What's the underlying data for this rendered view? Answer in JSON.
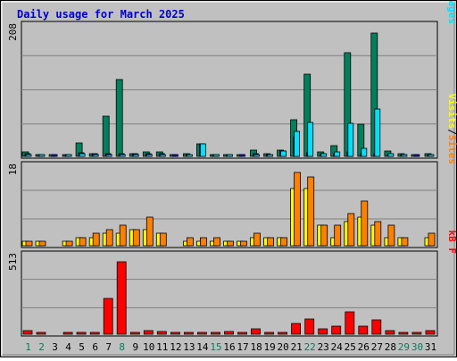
{
  "title": "Daily usage for March 2025",
  "colors": {
    "hits": "#00805c",
    "files": "#0000ff",
    "pages": "#00e0ff",
    "visits": "#ffff00",
    "sites": "#ff8000",
    "kbytes": "#ff0000",
    "weekend_day": "#00805c",
    "weekday": "#000000",
    "panel_bg": "#c0c0c0"
  },
  "chart_data": [
    {
      "type": "bar",
      "panel": "hits-files-pages",
      "ymax_label": "208",
      "ylim": [
        0,
        208
      ],
      "legend": [
        "Pages",
        "Files",
        "Hits"
      ],
      "legend_separator": "/",
      "categories": [
        "1",
        "2",
        "3",
        "4",
        "5",
        "6",
        "7",
        "8",
        "9",
        "10",
        "11",
        "12",
        "13",
        "14",
        "15",
        "16",
        "17",
        "18",
        "19",
        "20",
        "21",
        "22",
        "23",
        "24",
        "25",
        "26",
        "27",
        "28",
        "29",
        "30",
        "31"
      ],
      "series": [
        {
          "name": "Hits",
          "values": [
            8,
            3,
            1,
            2,
            22,
            5,
            68,
            128,
            5,
            8,
            8,
            1,
            4,
            21,
            3,
            3,
            1,
            11,
            4,
            11,
            61,
            137,
            7,
            18,
            173,
            54,
            206,
            9,
            4,
            1,
            5
          ]
        },
        {
          "name": "Files",
          "values": [
            4,
            1,
            1,
            1,
            6,
            4,
            4,
            4,
            4,
            5,
            4,
            1,
            2,
            21,
            2,
            1,
            1,
            4,
            2,
            9,
            33,
            6,
            5,
            4,
            8,
            4,
            4,
            2,
            2,
            1,
            3
          ]
        },
        {
          "name": "Pages",
          "values": [
            3,
            1,
            0,
            1,
            5,
            3,
            3,
            3,
            3,
            3,
            3,
            0,
            1,
            21,
            2,
            1,
            0,
            3,
            2,
            9,
            42,
            57,
            5,
            7,
            56,
            14,
            80,
            4,
            3,
            0,
            3
          ]
        }
      ]
    },
    {
      "type": "bar",
      "panel": "visits-sites",
      "ymax_label": "18",
      "ylim": [
        0,
        18
      ],
      "legend": [
        "Sites",
        "Visits"
      ],
      "legend_separator": "/",
      "categories": [
        "1",
        "2",
        "3",
        "4",
        "5",
        "6",
        "7",
        "8",
        "9",
        "10",
        "11",
        "12",
        "13",
        "14",
        "15",
        "16",
        "17",
        "18",
        "19",
        "20",
        "21",
        "22",
        "23",
        "24",
        "25",
        "26",
        "27",
        "28",
        "29",
        "30",
        "31"
      ],
      "series": [
        {
          "name": "Visits",
          "values": [
            1,
            1,
            0,
            1,
            2,
            2,
            3,
            3,
            4,
            4,
            3,
            0,
            1,
            1,
            1,
            1,
            1,
            2,
            2,
            2,
            14,
            14,
            5,
            2,
            6,
            7,
            5,
            2,
            2,
            0,
            2
          ]
        },
        {
          "name": "Sites",
          "values": [
            1,
            1,
            0,
            1,
            2,
            3,
            4,
            5,
            4,
            7,
            3,
            0,
            2,
            2,
            2,
            1,
            1,
            3,
            2,
            2,
            18,
            17,
            5,
            5,
            8,
            11,
            6,
            5,
            2,
            0,
            3
          ]
        }
      ]
    },
    {
      "type": "bar",
      "panel": "kbytes",
      "ymax_label": "513",
      "ylim": [
        0,
        513
      ],
      "legend": [
        "kB F"
      ],
      "categories": [
        "1",
        "2",
        "3",
        "4",
        "5",
        "6",
        "7",
        "8",
        "9",
        "10",
        "11",
        "12",
        "13",
        "14",
        "15",
        "16",
        "17",
        "18",
        "19",
        "20",
        "21",
        "22",
        "23",
        "24",
        "25",
        "26",
        "27",
        "28",
        "29",
        "30",
        "31"
      ],
      "series": [
        {
          "name": "kB F",
          "values": [
            25,
            6,
            0,
            8,
            12,
            15,
            255,
            513,
            8,
            25,
            20,
            2,
            15,
            15,
            8,
            17,
            13,
            36,
            11,
            11,
            75,
            108,
            40,
            60,
            158,
            60,
            101,
            25,
            9,
            2,
            25
          ]
        }
      ]
    }
  ],
  "x_axis": {
    "labels": [
      "1",
      "2",
      "3",
      "4",
      "5",
      "6",
      "7",
      "8",
      "9",
      "10",
      "11",
      "12",
      "13",
      "14",
      "15",
      "16",
      "17",
      "18",
      "19",
      "20",
      "21",
      "22",
      "23",
      "24",
      "25",
      "26",
      "27",
      "28",
      "29",
      "30",
      "31"
    ],
    "weekend": [
      1,
      2,
      8,
      15,
      22,
      29,
      30
    ]
  }
}
